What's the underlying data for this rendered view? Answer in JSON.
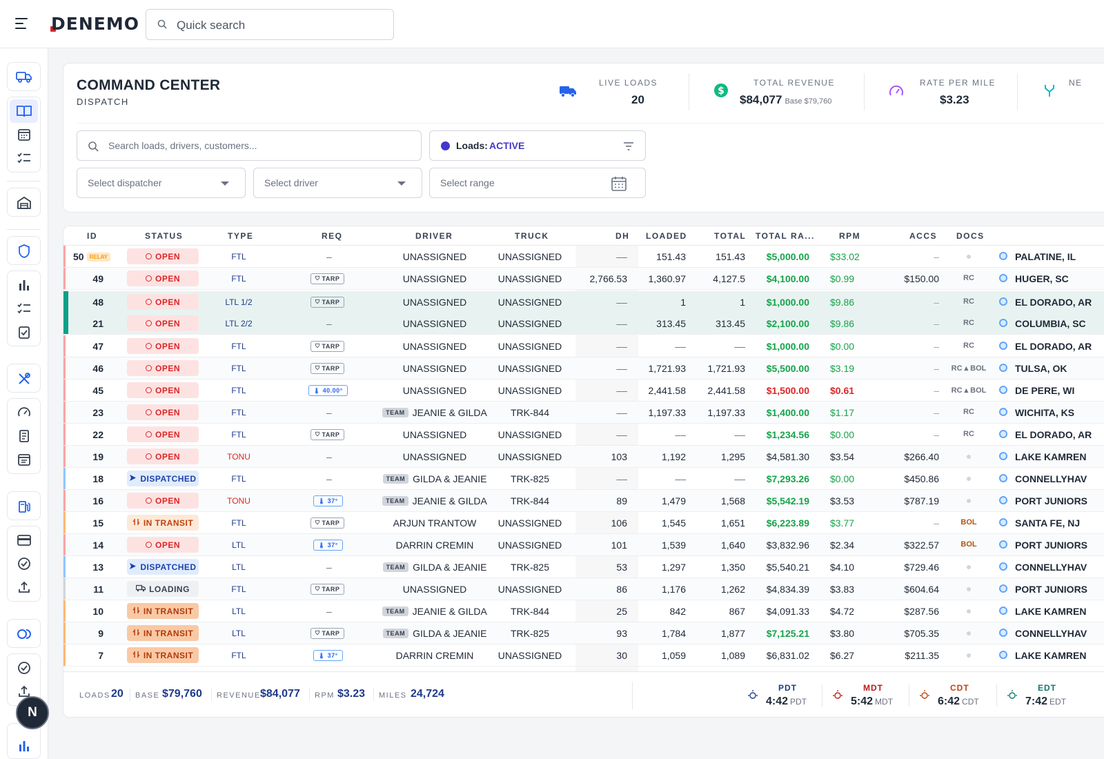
{
  "app": {
    "logo": "DENEMO",
    "quick_search_placeholder": "Quick search"
  },
  "header": {
    "title": "COMMAND CENTER",
    "subtitle": "DISPATCH",
    "kpis": [
      {
        "label": "LIVE LOADS",
        "value": "20",
        "sub": ""
      },
      {
        "label": "TOTAL REVENUE",
        "value": "$84,077",
        "sub": "Base $79,760"
      },
      {
        "label": "RATE PER MILE",
        "value": "$3.23",
        "sub": ""
      },
      {
        "label": "NE",
        "value": "",
        "sub": ""
      }
    ]
  },
  "filters": {
    "search_placeholder": "Search loads, drivers, customers...",
    "loads_label": "Loads:",
    "loads_value": "ACTIVE",
    "dispatcher_placeholder": "Select dispatcher",
    "driver_placeholder": "Select driver",
    "range_placeholder": "Select range"
  },
  "table": {
    "columns": [
      "ID",
      "STATUS",
      "TYPE",
      "REQ",
      "DRIVER",
      "TRUCK",
      "DH",
      "LOADED",
      "TOTAL",
      "TOTAL RA...",
      "RPM",
      "ACCS",
      "DOCS"
    ],
    "rows": [
      {
        "id": "50",
        "relay": "RELAY",
        "status": "OPEN",
        "type": "FTL",
        "req": "–",
        "team": "",
        "driver": "UNASSIGNED",
        "truck": "UNASSIGNED",
        "dh": "––",
        "loaded": "151.43",
        "total": "151.43",
        "rate": "$5,000.00",
        "rpm": "$33.02",
        "accs": "–",
        "docs": "",
        "loc": "PALATINE, IL"
      },
      {
        "id": "49",
        "relay": "",
        "status": "OPEN",
        "type": "FTL",
        "req": "TARP",
        "team": "",
        "driver": "UNASSIGNED",
        "truck": "UNASSIGNED",
        "dh": "2,766.53",
        "loaded": "1,360.97",
        "total": "4,127.5",
        "rate": "$4,100.00",
        "rpm": "$0.99",
        "accs": "$150.00",
        "docs": "RC",
        "loc": "HUGER, SC"
      },
      {
        "id": "48",
        "relay": "",
        "status": "OPEN",
        "type": "LTL 1/2",
        "req": "TARP",
        "team": "",
        "driver": "UNASSIGNED",
        "truck": "UNASSIGNED",
        "dh": "––",
        "loaded": "1",
        "total": "1",
        "rate": "$1,000.00",
        "rpm": "$9.86",
        "accs": "–",
        "docs": "RC",
        "loc": "EL DORADO, AR"
      },
      {
        "id": "21",
        "relay": "",
        "status": "OPEN",
        "type": "LTL 2/2",
        "req": "–",
        "team": "",
        "driver": "UNASSIGNED",
        "truck": "UNASSIGNED",
        "dh": "––",
        "loaded": "313.45",
        "total": "313.45",
        "rate": "$2,100.00",
        "rpm": "$9.86",
        "accs": "–",
        "docs": "RC",
        "loc": "COLUMBIA, SC"
      },
      {
        "id": "47",
        "relay": "",
        "status": "OPEN",
        "type": "FTL",
        "req": "TARP",
        "team": "",
        "driver": "UNASSIGNED",
        "truck": "UNASSIGNED",
        "dh": "––",
        "loaded": "––",
        "total": "––",
        "rate": "$1,000.00",
        "rpm": "$0.00",
        "accs": "–",
        "docs": "RC",
        "loc": "EL DORADO, AR"
      },
      {
        "id": "46",
        "relay": "",
        "status": "OPEN",
        "type": "FTL",
        "req": "TARP",
        "team": "",
        "driver": "UNASSIGNED",
        "truck": "UNASSIGNED",
        "dh": "––",
        "loaded": "1,721.93",
        "total": "1,721.93",
        "rate": "$5,500.00",
        "rpm": "$3.19",
        "accs": "–",
        "docs": "RC ▴ BOL",
        "loc": "TULSA, OK"
      },
      {
        "id": "45",
        "relay": "",
        "status": "OPEN",
        "type": "FTL",
        "req": "40.00°",
        "team": "",
        "driver": "UNASSIGNED",
        "truck": "UNASSIGNED",
        "dh": "––",
        "loaded": "2,441.58",
        "total": "2,441.58",
        "rate": "$1,500.00",
        "rpm": "$0.61",
        "accs": "–",
        "docs": "RC ▴ BOL",
        "loc": "DE PERE, WI"
      },
      {
        "id": "23",
        "relay": "",
        "status": "OPEN",
        "type": "FTL",
        "req": "–",
        "team": "TEAM",
        "driver": "JEANIE & GILDA",
        "truck": "TRK-844",
        "dh": "––",
        "loaded": "1,197.33",
        "total": "1,197.33",
        "rate": "$1,400.00",
        "rpm": "$1.17",
        "accs": "–",
        "docs": "RC",
        "loc": "WICHITA, KS"
      },
      {
        "id": "22",
        "relay": "",
        "status": "OPEN",
        "type": "FTL",
        "req": "TARP",
        "team": "",
        "driver": "UNASSIGNED",
        "truck": "UNASSIGNED",
        "dh": "––",
        "loaded": "––",
        "total": "––",
        "rate": "$1,234.56",
        "rpm": "$0.00",
        "accs": "–",
        "docs": "RC",
        "loc": "EL DORADO, AR"
      },
      {
        "id": "19",
        "relay": "",
        "status": "OPEN",
        "type": "TONU",
        "req": "–",
        "team": "",
        "driver": "UNASSIGNED",
        "truck": "UNASSIGNED",
        "dh": "103",
        "loaded": "1,192",
        "total": "1,295",
        "rate": "$4,581.30",
        "rpm": "$3.54",
        "accs": "$266.40",
        "docs": "",
        "loc": "LAKE KAMREN"
      },
      {
        "id": "18",
        "relay": "",
        "status": "DISPATCHED",
        "type": "FTL",
        "req": "–",
        "team": "TEAM",
        "driver": "GILDA & JEANIE",
        "truck": "TRK-825",
        "dh": "––",
        "loaded": "––",
        "total": "––",
        "rate": "$7,293.26",
        "rpm": "$0.00",
        "accs": "$450.86",
        "docs": "",
        "loc": "CONNELLYHAV"
      },
      {
        "id": "16",
        "relay": "",
        "status": "OPEN",
        "type": "TONU",
        "req": "37°",
        "team": "TEAM",
        "driver": "JEANIE & GILDA",
        "truck": "TRK-844",
        "dh": "89",
        "loaded": "1,479",
        "total": "1,568",
        "rate": "$5,542.19",
        "rpm": "$3.53",
        "accs": "$787.19",
        "docs": "",
        "loc": "PORT JUNIORS"
      },
      {
        "id": "15",
        "relay": "",
        "status": "IN TRANSIT",
        "type": "FTL",
        "req": "TARP",
        "team": "",
        "driver": "ARJUN TRANTOW",
        "truck": "UNASSIGNED",
        "dh": "106",
        "loaded": "1,545",
        "total": "1,651",
        "rate": "$6,223.89",
        "rpm": "$3.77",
        "accs": "–",
        "docs": "BOL",
        "loc": "SANTA FE, NJ"
      },
      {
        "id": "14",
        "relay": "",
        "status": "OPEN",
        "type": "LTL",
        "req": "37°",
        "team": "",
        "driver": "DARRIN CREMIN",
        "truck": "UNASSIGNED",
        "dh": "101",
        "loaded": "1,539",
        "total": "1,640",
        "rate": "$3,832.96",
        "rpm": "$2.34",
        "accs": "$322.57",
        "docs": "BOL",
        "loc": "PORT JUNIORS"
      },
      {
        "id": "13",
        "relay": "",
        "status": "DISPATCHED",
        "type": "LTL",
        "req": "–",
        "team": "TEAM",
        "driver": "GILDA & JEANIE",
        "truck": "TRK-825",
        "dh": "53",
        "loaded": "1,297",
        "total": "1,350",
        "rate": "$5,540.21",
        "rpm": "$4.10",
        "accs": "$729.46",
        "docs": "",
        "loc": "CONNELLYHAV"
      },
      {
        "id": "11",
        "relay": "",
        "status": "LOADING",
        "type": "FTL",
        "req": "TARP",
        "team": "",
        "driver": "UNASSIGNED",
        "truck": "UNASSIGNED",
        "dh": "86",
        "loaded": "1,176",
        "total": "1,262",
        "rate": "$4,834.39",
        "rpm": "$3.83",
        "accs": "$604.64",
        "docs": "",
        "loc": "PORT JUNIORS"
      },
      {
        "id": "10",
        "relay": "",
        "status": "IN TRANSIT",
        "type": "LTL",
        "req": "–",
        "team": "TEAM",
        "driver": "JEANIE & GILDA",
        "truck": "TRK-844",
        "dh": "25",
        "loaded": "842",
        "total": "867",
        "rate": "$4,091.33",
        "rpm": "$4.72",
        "accs": "$287.56",
        "docs": "",
        "loc": "LAKE KAMREN"
      },
      {
        "id": "9",
        "relay": "",
        "status": "IN TRANSIT",
        "type": "LTL",
        "req": "TARP",
        "team": "TEAM",
        "driver": "GILDA & JEANIE",
        "truck": "TRK-825",
        "dh": "93",
        "loaded": "1,784",
        "total": "1,877",
        "rate": "$7,125.21",
        "rpm": "$3.80",
        "accs": "$705.35",
        "docs": "",
        "loc": "CONNELLYHAV"
      },
      {
        "id": "7",
        "relay": "",
        "status": "IN TRANSIT",
        "type": "FTL",
        "req": "37°",
        "team": "",
        "driver": "DARRIN CREMIN",
        "truck": "UNASSIGNED",
        "dh": "30",
        "loaded": "1,059",
        "total": "1,089",
        "rate": "$6,831.02",
        "rpm": "$6.27",
        "accs": "$211.35",
        "docs": "",
        "loc": "LAKE KAMREN"
      }
    ]
  },
  "footer": {
    "stats": [
      {
        "label": "LOADS",
        "value": "20"
      },
      {
        "label": "BASE",
        "value": "$79,760"
      },
      {
        "label": "REVENUE",
        "value": "$84,077"
      },
      {
        "label": "RPM",
        "value": "$3.23"
      },
      {
        "label": "MILES",
        "value": "24,724"
      }
    ],
    "timezones": [
      {
        "name": "PDT",
        "time": "4:42",
        "suffix": "PDT",
        "color": "#1e3a8a"
      },
      {
        "name": "MDT",
        "time": "5:42",
        "suffix": "MDT",
        "color": "#b91c1c"
      },
      {
        "name": "CDT",
        "time": "6:42",
        "suffix": "CDT",
        "color": "#c2410c"
      },
      {
        "name": "EDT",
        "time": "7:42",
        "suffix": "EDT",
        "color": "#0f766e"
      }
    ]
  },
  "user": {
    "avatar_initial": "N"
  },
  "colors": {
    "accent": "#4338ca",
    "positive": "#16a34a",
    "negative": "#dc2626"
  }
}
